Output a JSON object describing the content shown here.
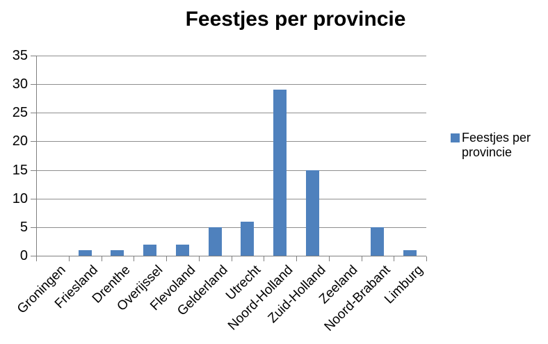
{
  "chart_data": {
    "type": "bar",
    "title": "Feestjes per provincie",
    "series_name": "Feestjes per provincie",
    "categories": [
      "Groningen",
      "Friesland",
      "Drenthe",
      "Overijssel",
      "Flevoland",
      "Gelderland",
      "Utrecht",
      "Noord-Holland",
      "Zuid-Holland",
      "Zeeland",
      "Noord-Brabant",
      "Limburg"
    ],
    "values": [
      0,
      1,
      1,
      2,
      2,
      5,
      6,
      29,
      15,
      0,
      5,
      1
    ],
    "xlabel": "",
    "ylabel": "",
    "ylim": [
      0,
      35
    ],
    "yticks": [
      0,
      5,
      10,
      15,
      20,
      25,
      30,
      35
    ],
    "grid": "horizontal gridlines on",
    "legend_position": "right",
    "colors": {
      "bar": "#4F81BD",
      "grid": "#8E8E8E",
      "axis": "#808080",
      "text": "#000000",
      "background": "#FFFFFF"
    }
  }
}
